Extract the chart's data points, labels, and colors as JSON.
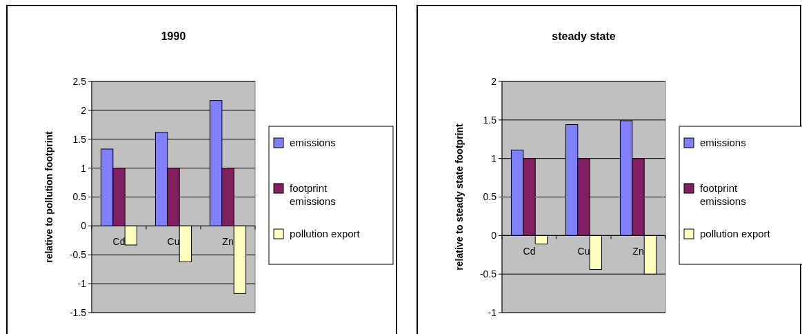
{
  "chart_data": [
    {
      "type": "bar",
      "title": "1990",
      "ylabel": "relative to pollution footprint",
      "categories": [
        "Cd",
        "Cu",
        "Zn"
      ],
      "series": [
        {
          "name": "emissions",
          "color": "#8080ff",
          "values": [
            1.33,
            1.62,
            2.17
          ]
        },
        {
          "name": "footprint emissions",
          "color": "#802060",
          "values": [
            1,
            1,
            1
          ]
        },
        {
          "name": "pollution export",
          "color": "#ffffc0",
          "values": [
            -0.33,
            -0.62,
            -1.17
          ]
        }
      ],
      "ylim": [
        -1.5,
        2.5
      ],
      "yticks": [
        -1.5,
        -1,
        -0.5,
        0,
        0.5,
        1,
        1.5,
        2,
        2.5
      ],
      "grid": "y",
      "legend": "right"
    },
    {
      "type": "bar",
      "title": "steady state",
      "ylabel": "relative to steady state footprint",
      "categories": [
        "Cd",
        "Cu",
        "Zn"
      ],
      "series": [
        {
          "name": "emissions",
          "color": "#8080ff",
          "values": [
            1.11,
            1.44,
            1.49
          ]
        },
        {
          "name": "footprint emissions",
          "color": "#802060",
          "values": [
            1,
            1,
            1
          ]
        },
        {
          "name": "pollution export",
          "color": "#ffffc0",
          "values": [
            -0.11,
            -0.44,
            -0.5
          ]
        }
      ],
      "ylim": [
        -1,
        2
      ],
      "yticks": [
        -1,
        -0.5,
        0,
        0.5,
        1,
        1.5,
        2
      ],
      "grid": "y",
      "legend": "right"
    }
  ]
}
